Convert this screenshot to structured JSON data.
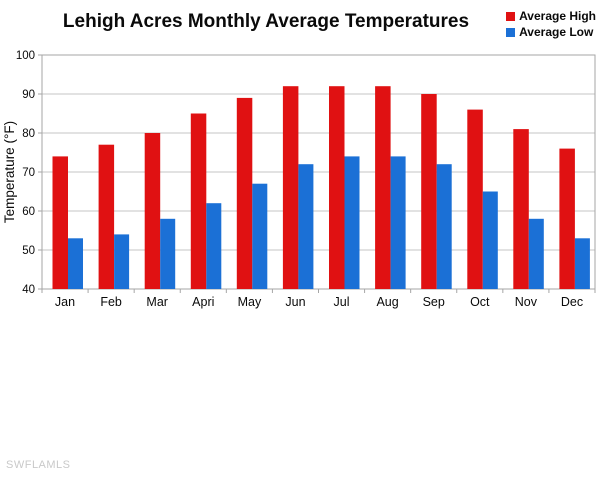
{
  "title": "Lehigh Acres Monthly Average Temperatures",
  "watermark": "SWFLAMLS",
  "chart_data": {
    "type": "bar",
    "title": "Lehigh Acres Monthly Average Temperatures",
    "categories": [
      "Jan",
      "Feb",
      "Mar",
      "Apri",
      "May",
      "Jun",
      "Jul",
      "Aug",
      "Sep",
      "Oct",
      "Nov",
      "Dec"
    ],
    "series": [
      {
        "name": "Average High",
        "color": "#e01112",
        "values": [
          74,
          77,
          80,
          85,
          89,
          92,
          92,
          92,
          90,
          86,
          81,
          76
        ]
      },
      {
        "name": "Average Low",
        "color": "#1b70d6",
        "values": [
          53,
          54,
          58,
          62,
          67,
          72,
          74,
          74,
          72,
          65,
          58,
          53
        ]
      }
    ],
    "xlabel": "",
    "ylabel": "Temperature (°F)",
    "ylim": [
      40,
      100
    ],
    "ytick_step": 10,
    "yticks": [
      40,
      50,
      60,
      70,
      80,
      90,
      100
    ],
    "grid": true,
    "legend_position": "top-right"
  },
  "colors": {
    "grid": "#c4c4c4",
    "plot_border": "#a6a6a6",
    "axis_text": "#0a0a0a",
    "watermark": "#c9c9c9"
  }
}
